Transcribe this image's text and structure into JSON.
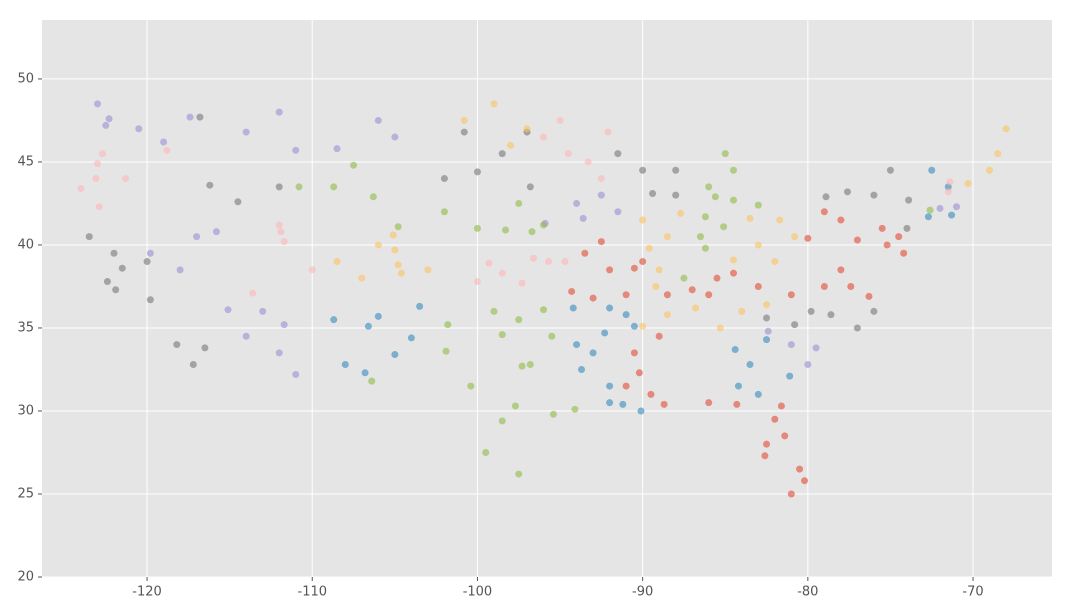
{
  "chart_data": {
    "type": "scatter",
    "grid": true,
    "xlim": [
      -126.36,
      -65.22
    ],
    "ylim": [
      20,
      53.55
    ],
    "xticks": [
      -120,
      -110,
      -100,
      -90,
      -80,
      -70
    ],
    "yticks": [
      20,
      25,
      30,
      35,
      40,
      45,
      50
    ],
    "series": [
      {
        "color": "#E24A33",
        "x": [
          -93.5,
          -92,
          -90.5,
          -94.3,
          -91,
          -92.5,
          -93,
          -90,
          -87,
          -85.5,
          -84.5,
          -83,
          -86,
          -88.5,
          -90.2,
          -89,
          -90.5,
          -89.5,
          -88.7,
          -91,
          -82.5,
          -81.4,
          -80.5,
          -80.2,
          -82,
          -84.3,
          -86,
          -81.6,
          -82.6,
          -81,
          -80,
          -77,
          -75.2,
          -75.5,
          -78,
          -74.5,
          -74.2,
          -79,
          -77.4,
          -76.3,
          -79,
          -81,
          -78
        ],
        "y": [
          39.5,
          38.5,
          38.6,
          37.2,
          37,
          40.2,
          36.8,
          39,
          37.3,
          38,
          38.3,
          37.5,
          37,
          37,
          32.3,
          34.5,
          33.5,
          31,
          30.4,
          31.5,
          28,
          28.5,
          26.5,
          25.8,
          29.5,
          30.4,
          30.5,
          30.3,
          27.3,
          25,
          40.4,
          40.3,
          40,
          41,
          41.5,
          40.5,
          39.5,
          42,
          37.5,
          36.9,
          37.5,
          37,
          38.5
        ]
      },
      {
        "color": "#348ABD",
        "x": [
          -106.6,
          -106,
          -104,
          -108,
          -106.8,
          -103.5,
          -108.7,
          -105,
          -92.3,
          -94.2,
          -91,
          -93,
          -90.5,
          -92,
          -94,
          -84.4,
          -83.5,
          -81.1,
          -84.2,
          -82.5,
          -83,
          -91.2,
          -92,
          -90.1,
          -93.7,
          -92,
          -72.5,
          -71.5,
          -72.7,
          -71.3
        ],
        "y": [
          35.1,
          35.7,
          34.4,
          32.8,
          32.3,
          36.3,
          35.5,
          33.4,
          34.7,
          36.2,
          35.8,
          33.5,
          35.1,
          36.2,
          34,
          33.7,
          32.8,
          32.1,
          31.5,
          34.3,
          31,
          30.4,
          30.5,
          30,
          32.5,
          31.5,
          44.5,
          43.5,
          41.7,
          41.8
        ]
      },
      {
        "color": "#988ED5",
        "x": [
          -122.3,
          -122.5,
          -120.5,
          -117.4,
          -123,
          -119,
          -114,
          -111,
          -108.5,
          -112,
          -106,
          -105,
          -119.8,
          -115.1,
          -117,
          -115.8,
          -118,
          -112,
          -111,
          -111.7,
          -114,
          -113,
          -93.6,
          -91.5,
          -95.9,
          -94,
          -92.5,
          -81,
          -80,
          -82.4,
          -79.5,
          -71,
          -72
        ],
        "y": [
          47.6,
          47.2,
          47,
          47.7,
          48.5,
          46.2,
          46.8,
          45.7,
          45.8,
          48,
          47.5,
          46.5,
          39.5,
          36.1,
          40.5,
          40.8,
          38.5,
          33.5,
          32.2,
          35.2,
          34.5,
          36,
          41.6,
          42,
          41.3,
          42.5,
          43,
          34,
          32.8,
          34.8,
          33.8,
          42.3,
          42.2
        ]
      },
      {
        "color": "#777777",
        "x": [
          -122.4,
          -121.9,
          -118.2,
          -117.2,
          -121.5,
          -119.8,
          -123.5,
          -120,
          -116.5,
          -122,
          -116.2,
          -112,
          -116.8,
          -114.5,
          -100,
          -98.5,
          -96.8,
          -102,
          -97,
          -100.8,
          -89.4,
          -88,
          -90,
          -91.5,
          -88,
          -78.6,
          -80.8,
          -77,
          -82.5,
          -79.8,
          -76,
          -76,
          -78.9,
          -73.9,
          -75,
          -77.6,
          -74
        ],
        "y": [
          37.8,
          37.3,
          34,
          32.8,
          38.6,
          36.7,
          40.5,
          39,
          33.8,
          39.5,
          43.6,
          43.5,
          47.7,
          42.6,
          44.4,
          45.5,
          43.5,
          44,
          46.8,
          46.8,
          43.1,
          43,
          44.5,
          45.5,
          44.5,
          35.8,
          35.2,
          35,
          35.6,
          36,
          36,
          43,
          42.9,
          42.7,
          44.5,
          43.2,
          41
        ]
      },
      {
        "color": "#FBC15E",
        "x": [
          -105,
          -104.8,
          -106,
          -108.5,
          -107,
          -103,
          -105.1,
          -104.6,
          -87.7,
          -89.6,
          -88.5,
          -90,
          -89,
          -89.2,
          -83,
          -81.7,
          -84.5,
          -82,
          -83.5,
          -80.8,
          -86.8,
          -90,
          -85.3,
          -84,
          -88.5,
          -82.5,
          -70.3,
          -69,
          -68.5,
          -68,
          -100.8,
          -97,
          -99,
          -98
        ],
        "y": [
          39.7,
          38.8,
          40,
          39,
          38,
          38.5,
          40.6,
          38.3,
          41.9,
          39.8,
          40.5,
          41.5,
          38.5,
          37.5,
          40,
          41.5,
          39.1,
          39,
          41.6,
          40.5,
          36.2,
          35.1,
          35,
          36,
          35.8,
          36.4,
          43.7,
          44.5,
          45.5,
          47,
          47.5,
          47,
          48.5,
          46
        ]
      },
      {
        "color": "#8EBA42",
        "x": [
          -97.7,
          -98.5,
          -96.8,
          -95.4,
          -101.8,
          -106.4,
          -97.5,
          -99.5,
          -97.3,
          -94.1,
          -101.9,
          -100.4,
          -97.5,
          -96,
          -99,
          -95.5,
          -98.5,
          -104.8,
          -106.3,
          -108.7,
          -110.8,
          -107.5,
          -96,
          -96.7,
          -100,
          -98.3,
          -102,
          -97.5,
          -86.2,
          -87.5,
          -85.1,
          -86.5,
          -86.2,
          -83,
          -85.6,
          -84.5,
          -84.5,
          -86,
          -85,
          -72.6
        ],
        "y": [
          30.3,
          29.4,
          32.8,
          29.8,
          35.2,
          31.8,
          26.2,
          27.5,
          32.7,
          30.1,
          33.6,
          31.5,
          35.5,
          36.1,
          36,
          34.5,
          34.6,
          41.1,
          42.9,
          43.5,
          43.5,
          44.8,
          41.2,
          40.8,
          41,
          40.9,
          42,
          42.5,
          39.8,
          38,
          41.1,
          40.5,
          41.7,
          42.4,
          42.9,
          42.7,
          44.5,
          43.5,
          45.5,
          42.1
        ]
      },
      {
        "color": "#FFB5B8",
        "x": [
          -122.7,
          -123,
          -123.1,
          -122.9,
          -121.3,
          -118.8,
          -124,
          -97.3,
          -95.7,
          -94.7,
          -99.3,
          -100,
          -96.6,
          -98.5,
          -111.9,
          -111.7,
          -112,
          -113.6,
          -110,
          -93.3,
          -92.1,
          -94.5,
          -96,
          -92.5,
          -95,
          -71.5,
          -71.4
        ],
        "y": [
          45.5,
          44.9,
          44,
          42.3,
          44,
          45.7,
          43.4,
          37.7,
          39,
          39,
          38.9,
          37.8,
          39.2,
          38.3,
          40.8,
          40.2,
          41.2,
          37.1,
          38.5,
          45,
          46.8,
          45.5,
          46.5,
          44,
          47.5,
          43.2,
          43.8
        ]
      }
    ]
  }
}
